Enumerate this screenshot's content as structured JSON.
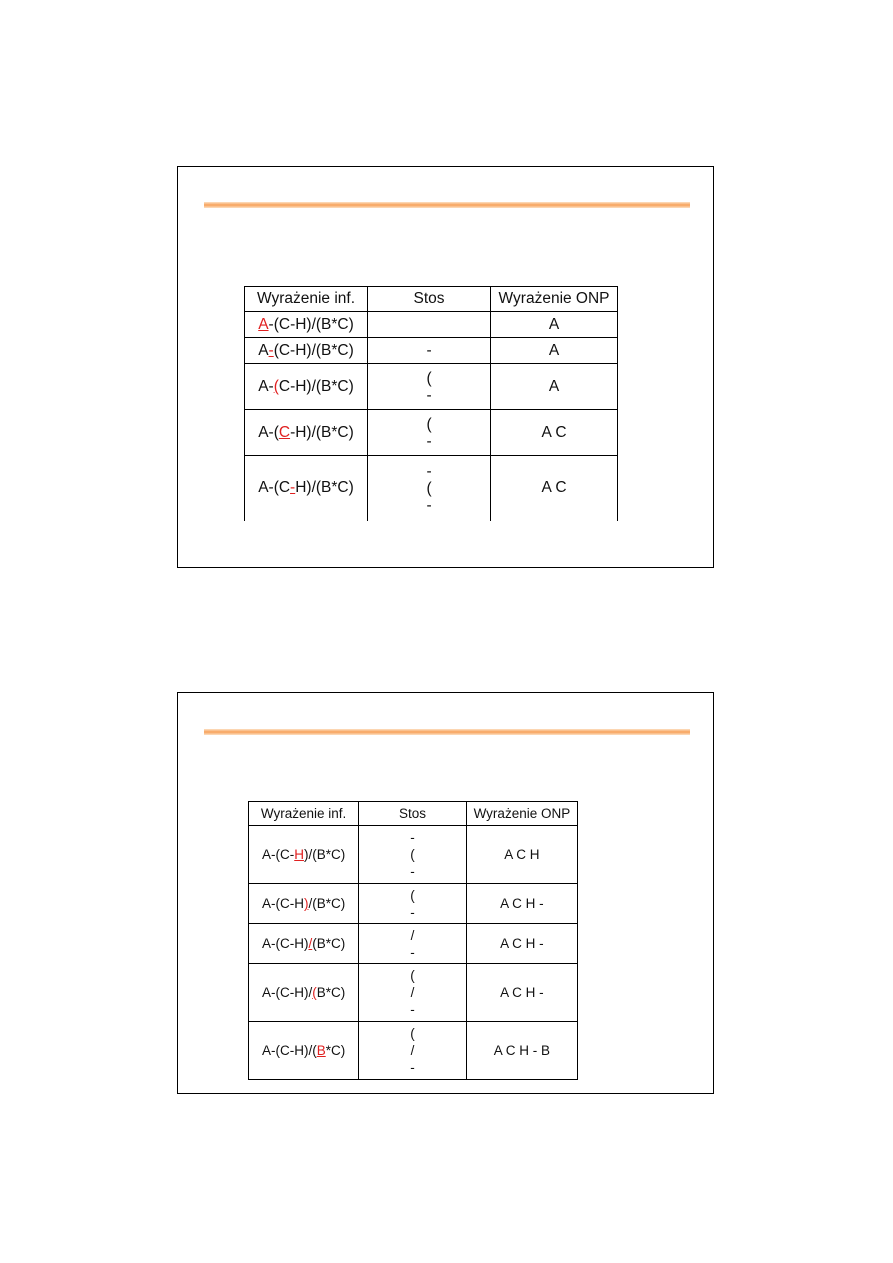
{
  "accent_color": "#f7a25a",
  "highlight_color": "#e02020",
  "slides": [
    {
      "headers": [
        "Wyrażenie inf.",
        "Stos",
        "Wyrażenie ONP"
      ],
      "rows": [
        {
          "expr": {
            "pre": "",
            "hl": "A",
            "post": "-(C-H)/(B*C)"
          },
          "stack": [],
          "onp": "A"
        },
        {
          "expr": {
            "pre": "A",
            "hl": "-",
            "post": "(C-H)/(B*C)"
          },
          "stack": [
            "-"
          ],
          "onp": "A"
        },
        {
          "expr": {
            "pre": "A-",
            "hl": "(",
            "post": "C-H)/(B*C)"
          },
          "stack": [
            "(",
            "-"
          ],
          "onp": "A"
        },
        {
          "expr": {
            "pre": "A-(",
            "hl": "C",
            "post": "-H)/(B*C)"
          },
          "stack": [
            "(",
            "-"
          ],
          "onp": "A C"
        },
        {
          "expr": {
            "pre": "A-(C",
            "hl": "-",
            "post": "H)/(B*C)"
          },
          "stack": [
            "-",
            "(",
            "-"
          ],
          "onp": "A C"
        }
      ]
    },
    {
      "headers": [
        "Wyrażenie inf.",
        "Stos",
        "Wyrażenie ONP"
      ],
      "rows": [
        {
          "expr": {
            "pre": "A-(C-",
            "hl": "H",
            "post": ")/(B*C)"
          },
          "stack": [
            "-",
            "(",
            "-"
          ],
          "onp": "A C H"
        },
        {
          "expr": {
            "pre": "A-(C-H",
            "hl": ")",
            "post": "/(B*C)"
          },
          "stack": [
            "(",
            "-"
          ],
          "onp": "A C H -"
        },
        {
          "expr": {
            "pre": "A-(C-H)",
            "hl": "/",
            "post": "(B*C)"
          },
          "stack": [
            "/",
            "-"
          ],
          "onp": "A C H -"
        },
        {
          "expr": {
            "pre": "A-(C-H)/",
            "hl": "(",
            "post": "B*C)"
          },
          "stack": [
            "(",
            "/",
            "-"
          ],
          "onp": "A C H -"
        },
        {
          "expr": {
            "pre": "A-(C-H)/(",
            "hl": "B",
            "post": "*C)"
          },
          "stack": [
            "(",
            "/",
            "-"
          ],
          "onp": "A C H - B"
        }
      ]
    }
  ]
}
